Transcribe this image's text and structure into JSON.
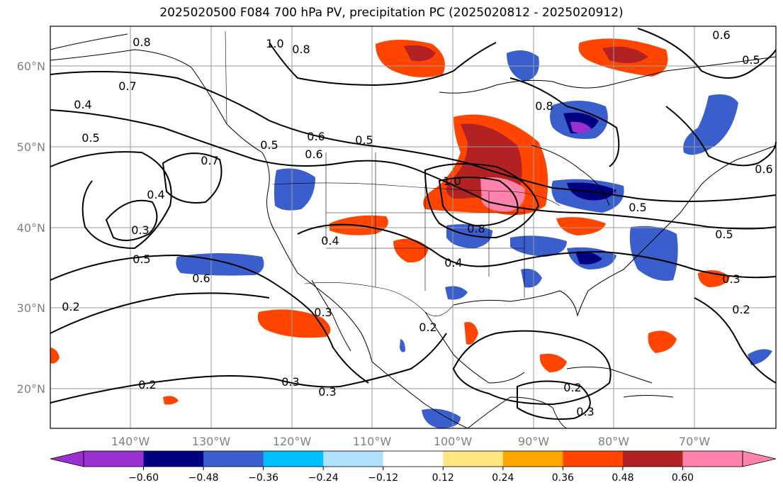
{
  "title": "2025020500 F084 700 hPa PV, precipitation PC (2025020812 - 2025020912)",
  "lat_labels": [
    "60°N",
    "50°N",
    "40°N",
    "30°N",
    "20°N"
  ],
  "lon_labels": [
    "140°W",
    "130°W",
    "120°W",
    "110°W",
    "100°W",
    "90°W",
    "80°W",
    "70°W"
  ],
  "contour_labels": [
    "0.8",
    "1.0",
    "0.8",
    "0.7",
    "0.4",
    "0.5",
    "0.7",
    "0.4",
    "0.3",
    "0.5",
    "0.6",
    "0.6",
    "0.5",
    "0.5",
    "0.6",
    "0.4",
    "1.0",
    "0.8",
    "0.8",
    "0.4",
    "0.3",
    "0.2",
    "0.2",
    "0.3",
    "0.2",
    "0.3",
    "0.2",
    "0.3",
    "0.2",
    "0.5",
    "0.6",
    "0.5",
    "0.5",
    "0.6",
    "0.3"
  ],
  "colorbar": {
    "ticks": [
      "−0.60",
      "−0.48",
      "−0.36",
      "−0.24",
      "−0.12",
      "0.12",
      "0.24",
      "0.36",
      "0.48",
      "0.60"
    ],
    "colors": [
      "#9b30d0",
      "#000080",
      "#3a5fcd",
      "#00bfff",
      "#b0e0ff",
      "#ffffff",
      "#ffe680",
      "#ffa500",
      "#ff4500",
      "#b22222",
      "#ff82ab"
    ],
    "under_color": "#9b30d0",
    "over_color": "#ff82ab"
  },
  "colors": {
    "neg_strong": "#9b30d0",
    "neg_dark": "#000080",
    "neg_mid": "#3a5fcd",
    "pos_mid": "#ff4500",
    "pos_dark": "#b22222",
    "pos_strong": "#ff82ab",
    "pos_light": "#ffa500"
  }
}
